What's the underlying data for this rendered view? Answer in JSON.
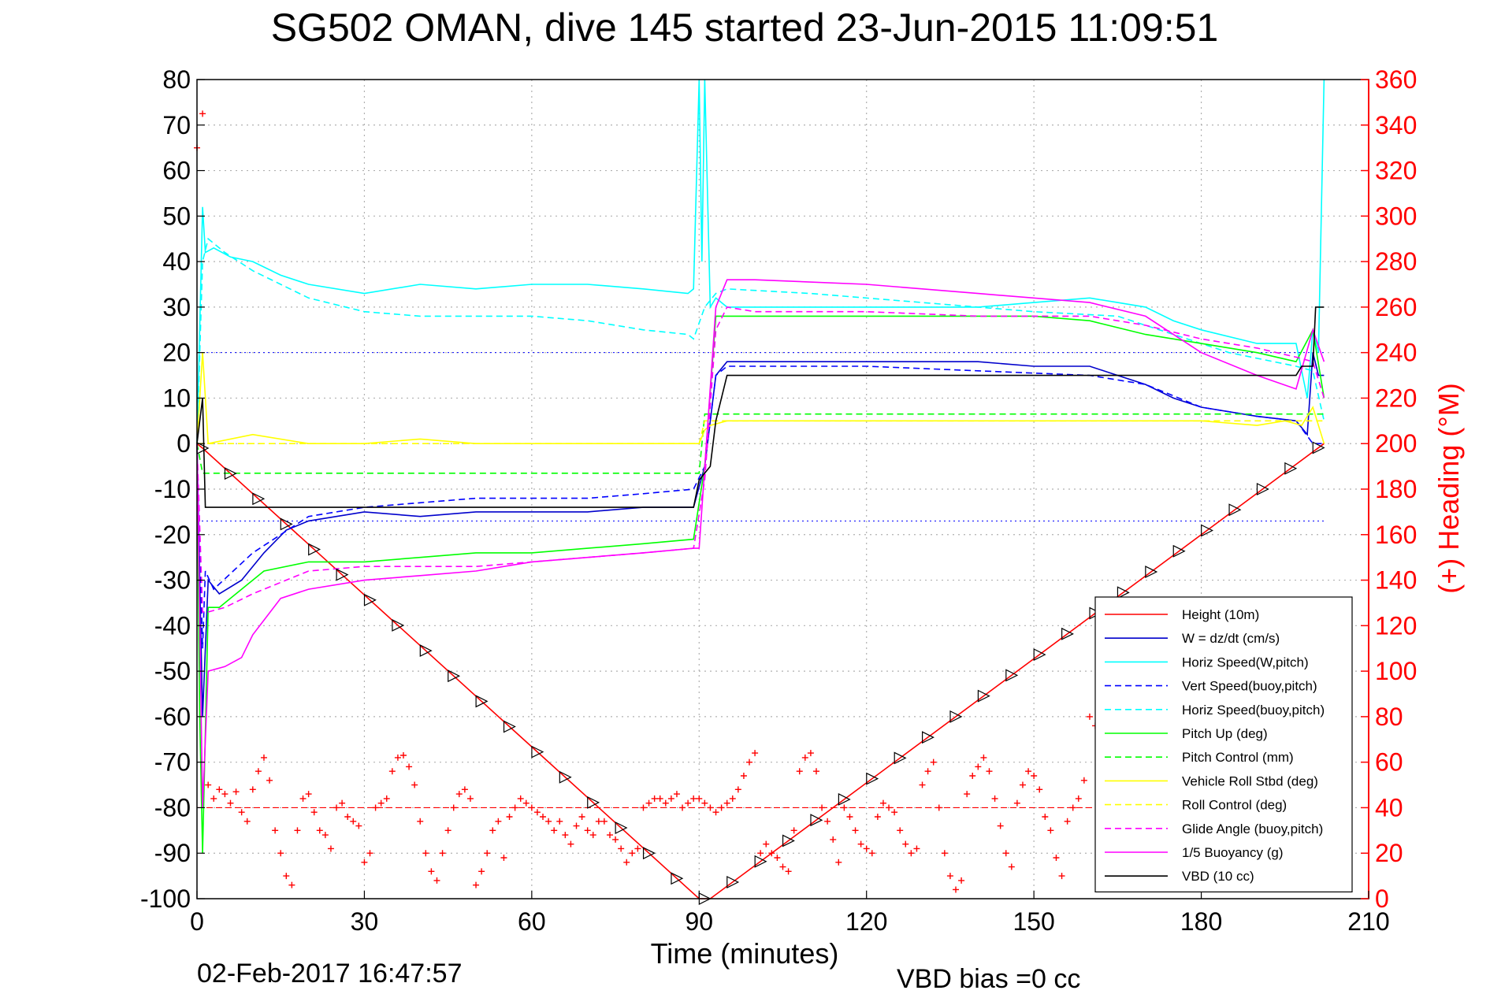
{
  "chart_data": {
    "type": "line",
    "title": "SG502 OMAN, dive 145 started 23-Jun-2015 11:09:51",
    "xlabel": "Time (minutes)",
    "ylabel_right": "(+) Heading (°M)",
    "xlim": [
      0,
      210
    ],
    "ylim": [
      -100,
      80
    ],
    "y2lim": [
      0,
      360
    ],
    "x_ticks": [
      "0",
      "30",
      "60",
      "90",
      "120",
      "150",
      "180",
      "210"
    ],
    "y_ticks": [
      "80",
      "70",
      "60",
      "50",
      "40",
      "30",
      "20",
      "10",
      "0",
      "-10",
      "-20",
      "-30",
      "-40",
      "-50",
      "-60",
      "-70",
      "-80",
      "-90",
      "-100"
    ],
    "y2_ticks": [
      "360",
      "340",
      "320",
      "300",
      "280",
      "260",
      "240",
      "220",
      "200",
      "180",
      "160",
      "140",
      "120",
      "100",
      "80",
      "60",
      "40",
      "20",
      "0"
    ],
    "grid": true,
    "legend_position": "bottom-right",
    "footer_left": "02-Feb-2017 16:47:57",
    "footer_right": "VBD bias =0 cc",
    "colors": {
      "axis_right": "#ff0000",
      "height": "#ff0000",
      "w": "#0000cc",
      "horiz": "#00ffff",
      "pitch": "#00ff00",
      "roll": "#ffff00",
      "glide": "#ff00ff",
      "vbd": "#000000",
      "heading": "#ff0000"
    },
    "series": [
      {
        "name": "Height (10m)",
        "color": "#ff0000",
        "dash": false,
        "x": [
          0,
          1,
          90,
          92,
          202
        ],
        "y": [
          0,
          -1,
          -100,
          -100,
          0
        ]
      },
      {
        "name": "W = dz/dt (cm/s)",
        "color": "#0000cc",
        "dash": false,
        "x": [
          0,
          0.5,
          1,
          2,
          4,
          8,
          12,
          16,
          20,
          30,
          40,
          50,
          60,
          70,
          80,
          89,
          91,
          93,
          95,
          100,
          110,
          120,
          130,
          140,
          150,
          160,
          165,
          170,
          175,
          180,
          190,
          197,
          199,
          200,
          201,
          202
        ],
        "y": [
          0,
          -30,
          -60,
          -30,
          -33,
          -30,
          -24,
          -19,
          -17,
          -15,
          -16,
          -15,
          -15,
          -15,
          -14,
          -14,
          -5,
          15,
          18,
          18,
          18,
          18,
          18,
          18,
          17,
          17,
          15,
          13,
          10,
          8,
          6,
          5,
          2,
          20,
          15,
          15
        ]
      },
      {
        "name": "Horiz Speed(W,pitch)",
        "color": "#00ffff",
        "dash": false,
        "x": [
          0,
          1,
          1.5,
          3,
          6,
          10,
          15,
          20,
          30,
          40,
          50,
          60,
          70,
          80,
          88,
          89,
          90,
          90.5,
          91,
          92,
          93,
          95,
          100,
          110,
          120,
          130,
          140,
          150,
          160,
          165,
          170,
          175,
          180,
          190,
          197,
          199,
          200,
          201,
          202
        ],
        "y": [
          0,
          52,
          42,
          43,
          41,
          40,
          37,
          35,
          33,
          35,
          34,
          35,
          35,
          34,
          33,
          34,
          80,
          40,
          80,
          30,
          32,
          30,
          30,
          30,
          30,
          30,
          30,
          31,
          32,
          31,
          30,
          27,
          25,
          22,
          22,
          10,
          25,
          20,
          80
        ]
      },
      {
        "name": "Vert Speed(buoy,pitch)",
        "color": "#0000ff",
        "dash": true,
        "x": [
          0,
          1,
          1.5,
          3,
          10,
          20,
          30,
          40,
          50,
          60,
          70,
          80,
          89,
          91,
          93,
          95,
          100,
          120,
          140,
          160,
          170,
          180,
          190,
          197,
          200,
          202
        ],
        "y": [
          0,
          -45,
          -28,
          -32,
          -24,
          -16,
          -14,
          -13,
          -12,
          -12,
          -12,
          -11,
          -10,
          -5,
          15,
          17,
          17,
          17,
          16,
          15,
          13,
          8,
          6,
          5,
          0,
          0
        ]
      },
      {
        "name": "Horiz Speed(buoy,pitch)",
        "color": "#00ffff",
        "dash": true,
        "x": [
          0,
          1,
          2,
          5,
          10,
          20,
          30,
          40,
          50,
          60,
          70,
          80,
          88,
          89,
          91,
          93,
          95,
          110,
          130,
          150,
          165,
          175,
          185,
          197,
          200,
          202
        ],
        "y": [
          0,
          40,
          45,
          42,
          38,
          32,
          29,
          28,
          28,
          28,
          27,
          25,
          24,
          23,
          30,
          33,
          34,
          33,
          31,
          29,
          28,
          24,
          20,
          17,
          16,
          5
        ]
      },
      {
        "name": "Pitch Up (deg)",
        "color": "#00ff00",
        "dash": false,
        "x": [
          0,
          0.5,
          1,
          2,
          4,
          8,
          12,
          20,
          30,
          40,
          50,
          60,
          70,
          80,
          89,
          91,
          93,
          95,
          100,
          110,
          120,
          130,
          140,
          150,
          160,
          170,
          180,
          190,
          197,
          200,
          202
        ],
        "y": [
          0,
          -60,
          -90,
          -36,
          -36,
          -32,
          -28,
          -26,
          -26,
          -25,
          -24,
          -24,
          -23,
          -22,
          -21,
          -5,
          28,
          28,
          28,
          28,
          28,
          28,
          28,
          28,
          27,
          24,
          22,
          20,
          18,
          25,
          10
        ]
      },
      {
        "name": "Pitch Control (mm)",
        "color": "#00ff00",
        "dash": true,
        "x": [
          0,
          1,
          1.5,
          89,
          90,
          91,
          202
        ],
        "y": [
          0,
          -6.5,
          -6.5,
          -6.5,
          -6.5,
          6.5,
          6.5
        ]
      },
      {
        "name": "Vehicle Roll Stbd (deg)",
        "color": "#ffff00",
        "dash": false,
        "x": [
          0,
          1,
          2,
          10,
          20,
          30,
          40,
          50,
          60,
          70,
          80,
          90,
          91,
          92,
          95,
          100,
          120,
          140,
          160,
          180,
          190,
          195,
          198,
          200,
          202
        ],
        "y": [
          0,
          20,
          0,
          2,
          0,
          0,
          1,
          0,
          0,
          0,
          0,
          0,
          3,
          4,
          5,
          5,
          5,
          5,
          5,
          5,
          4,
          5,
          4,
          8,
          0
        ]
      },
      {
        "name": "Roll Control (deg)",
        "color": "#ffff00",
        "dash": true,
        "x": [
          0,
          1,
          2,
          30,
          60,
          89,
          90,
          91,
          95,
          120,
          150,
          180,
          200,
          202
        ],
        "y": [
          0,
          0,
          0,
          0,
          0,
          0,
          0,
          5,
          5,
          5,
          5,
          5,
          5,
          5
        ]
      },
      {
        "name": "Glide Angle (buoy,pitch)",
        "color": "#ff00ff",
        "dash": true,
        "x": [
          0,
          1,
          2,
          5,
          10,
          20,
          30,
          40,
          50,
          60,
          70,
          80,
          89,
          91,
          93,
          95,
          100,
          120,
          140,
          160,
          170,
          180,
          190,
          197,
          200,
          202
        ],
        "y": [
          0,
          -37,
          -37,
          -36,
          -33,
          -28,
          -27,
          -27,
          -27,
          -26,
          -25,
          -24,
          -23,
          -8,
          25,
          30,
          29,
          29,
          28,
          28,
          26,
          23,
          21,
          19,
          18,
          10
        ]
      },
      {
        "name": "1/5 Buoyancy (g)",
        "color": "#ff00ff",
        "dash": false,
        "x": [
          0,
          1,
          2,
          5,
          8,
          10,
          15,
          20,
          30,
          40,
          50,
          60,
          70,
          80,
          89,
          90,
          93,
          95,
          100,
          120,
          140,
          160,
          170,
          180,
          190,
          197,
          200,
          202
        ],
        "y": [
          0,
          -80,
          -50,
          -49,
          -47,
          -42,
          -34,
          -32,
          -30,
          -29,
          -28,
          -26,
          -25,
          -24,
          -23,
          -23,
          30,
          36,
          36,
          35,
          33,
          31,
          28,
          20,
          15,
          12,
          25,
          18
        ]
      },
      {
        "name": "VBD (10 cc)",
        "color": "#000000",
        "dash": false,
        "x": [
          0,
          1,
          1.5,
          30,
          40,
          60,
          80,
          89,
          90,
          92,
          93,
          94,
          95,
          150,
          170,
          197,
          198,
          200,
          200.5,
          202
        ],
        "y": [
          0,
          10,
          -14,
          -14,
          -14,
          -14,
          -14,
          -14,
          -8,
          -5,
          5,
          10,
          15,
          15,
          15,
          15,
          17,
          17,
          30,
          30
        ]
      }
    ],
    "heading_points_y2": {
      "x": [
        0,
        1,
        2,
        3,
        4,
        5,
        6,
        7,
        8,
        9,
        10,
        11,
        12,
        13,
        14,
        15,
        16,
        17,
        18,
        19,
        20,
        21,
        22,
        23,
        24,
        25,
        26,
        27,
        28,
        29,
        30,
        31,
        32,
        33,
        34,
        35,
        36,
        37,
        38,
        39,
        40,
        41,
        42,
        43,
        44,
        45,
        46,
        47,
        48,
        49,
        50,
        51,
        52,
        53,
        54,
        55,
        56,
        57,
        58,
        59,
        60,
        61,
        62,
        63,
        64,
        65,
        66,
        67,
        68,
        69,
        70,
        71,
        72,
        73,
        74,
        75,
        76,
        77,
        78,
        79,
        80,
        81,
        82,
        83,
        84,
        85,
        86,
        87,
        88,
        89,
        90,
        91,
        92,
        93,
        94,
        95,
        96,
        97,
        98,
        99,
        100,
        101,
        102,
        103,
        104,
        105,
        106,
        107,
        108,
        109,
        110,
        111,
        112,
        113,
        114,
        115,
        116,
        117,
        118,
        119,
        120,
        121,
        122,
        123,
        124,
        125,
        126,
        127,
        128,
        129,
        130,
        131,
        132,
        133,
        134,
        135,
        136,
        137,
        138,
        139,
        140,
        141,
        142,
        143,
        144,
        145,
        146,
        147,
        148,
        149,
        150,
        151,
        152,
        153,
        154,
        155,
        156,
        157,
        158,
        159,
        160,
        161,
        162,
        163,
        164,
        165,
        166,
        167,
        168,
        169,
        170,
        171,
        172,
        173,
        174,
        175,
        176,
        177,
        178,
        179,
        180,
        181,
        182,
        183,
        184,
        185,
        186,
        187,
        188,
        189,
        190,
        191,
        192,
        193,
        194,
        195,
        196,
        197,
        198,
        199,
        200,
        201,
        202
      ],
      "y": [
        330,
        345,
        50,
        44,
        48,
        46,
        42,
        47,
        38,
        34,
        48,
        56,
        62,
        52,
        30,
        20,
        10,
        6,
        30,
        44,
        46,
        38,
        30,
        28,
        22,
        40,
        42,
        36,
        34,
        32,
        16,
        20,
        40,
        42,
        44,
        56,
        62,
        63,
        58,
        50,
        34,
        20,
        12,
        8,
        20,
        30,
        40,
        46,
        48,
        44,
        6,
        12,
        20,
        30,
        34,
        18,
        36,
        40,
        44,
        42,
        40,
        38,
        36,
        34,
        30,
        34,
        28,
        24,
        32,
        36,
        30,
        28,
        34,
        34,
        28,
        26,
        22,
        16,
        20,
        22,
        40,
        42,
        44,
        44,
        42,
        44,
        46,
        40,
        42,
        44,
        44,
        42,
        40,
        38,
        40,
        42,
        44,
        48,
        54,
        60,
        64,
        20,
        24,
        20,
        18,
        14,
        12,
        30,
        56,
        62,
        64,
        56,
        40,
        34,
        26,
        16,
        40,
        36,
        30,
        24,
        22,
        20,
        36,
        42,
        40,
        38,
        30,
        24,
        20,
        22,
        50,
        56,
        60,
        40,
        20,
        10,
        4,
        8,
        46,
        54,
        58,
        62,
        56,
        44,
        32,
        20,
        14,
        42,
        50,
        56,
        54,
        48,
        36,
        30,
        18,
        10,
        34,
        40,
        44,
        52,
        80,
        76,
        74,
        70,
        40,
        36,
        30,
        26,
        40,
        42,
        44,
        42,
        36,
        30,
        24,
        16,
        20,
        44,
        46,
        40,
        20,
        24,
        30,
        34,
        40,
        44,
        48,
        46,
        30,
        22,
        14,
        10,
        16,
        20,
        22,
        26,
        44,
        40,
        36,
        30,
        24,
        20,
        20
      ]
    }
  }
}
